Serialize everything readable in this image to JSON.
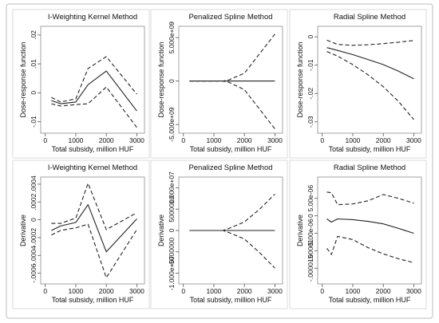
{
  "chart_data": [
    {
      "type": "line",
      "title": "I-Weighting Kernel Method",
      "xlabel": "Total subsidy, million HUF",
      "ylabel": "Dose-response function",
      "grid": false,
      "xlim": [
        -150,
        3250
      ],
      "ylim": [
        -0.014,
        0.023
      ],
      "xticks": [
        {
          "value": 0,
          "label": "0"
        },
        {
          "value": 1000,
          "label": "1000"
        },
        {
          "value": 2000,
          "label": "2000"
        },
        {
          "value": 3000,
          "label": "3000"
        }
      ],
      "yticks": [
        {
          "value": -0.01,
          "label": "-.01"
        },
        {
          "value": 0,
          "label": "0"
        },
        {
          "value": 0.01,
          "label": ".01"
        },
        {
          "value": 0.02,
          "label": ".02"
        }
      ],
      "series": [
        {
          "dashed": false,
          "x": [
            200,
            500,
            1000,
            1400,
            2000,
            3000
          ],
          "y": [
            -0.0027,
            -0.0038,
            -0.0032,
            0.0028,
            0.0075,
            -0.0063
          ]
        },
        {
          "dashed": true,
          "x": [
            200,
            500,
            1000,
            1400,
            2000,
            3000
          ],
          "y": [
            -0.0016,
            -0.0032,
            -0.0021,
            0.0084,
            0.0125,
            -0.0005
          ]
        },
        {
          "dashed": true,
          "x": [
            200,
            500,
            1000,
            1400,
            2000,
            3000
          ],
          "y": [
            -0.0038,
            -0.0046,
            -0.0041,
            -0.0038,
            0.002,
            -0.012
          ]
        }
      ]
    },
    {
      "type": "line",
      "title": "Penalized Spline Method",
      "xlabel": "Total subsidy, million HUF",
      "ylabel": "Dose-response function",
      "grid": false,
      "xlim": [
        -150,
        3250
      ],
      "ylim": [
        -6000000000,
        6300000000
      ],
      "xticks": [
        {
          "value": 0,
          "label": "0"
        },
        {
          "value": 1000,
          "label": "1000"
        },
        {
          "value": 2000,
          "label": "2000"
        },
        {
          "value": 3000,
          "label": "3000"
        }
      ],
      "yticks": [
        {
          "value": -5000000000,
          "label": "-5.000e+09"
        },
        {
          "value": 0,
          "label": "0"
        },
        {
          "value": 5000000000,
          "label": "5.000e+09"
        }
      ],
      "series": [
        {
          "dashed": false,
          "x": [
            200,
            500,
            1000,
            1300,
            1500,
            2000,
            2500,
            3000
          ],
          "y": [
            0,
            0,
            0,
            0,
            0,
            0,
            0,
            0
          ]
        },
        {
          "dashed": true,
          "x": [
            200,
            500,
            1000,
            1300,
            1500,
            2000,
            2500,
            3000
          ],
          "y": [
            0,
            0,
            0,
            0,
            150000000,
            900000000,
            3150000000,
            5400000000
          ]
        },
        {
          "dashed": true,
          "x": [
            200,
            500,
            1000,
            1300,
            1500,
            2000,
            2500,
            3000
          ],
          "y": [
            0,
            0,
            0,
            0,
            -150000000,
            -1000000000,
            -3250000000,
            -5500000000
          ]
        }
      ]
    },
    {
      "type": "line",
      "title": "Radial Spline Method",
      "xlabel": "Total subsidy, million HUF",
      "ylabel": "Dose-response function",
      "grid": false,
      "xlim": [
        -150,
        3250
      ],
      "ylim": [
        -0.034,
        0.0037
      ],
      "xticks": [
        {
          "value": 0,
          "label": "0"
        },
        {
          "value": 1000,
          "label": "1000"
        },
        {
          "value": 2000,
          "label": "2000"
        },
        {
          "value": 3000,
          "label": "3000"
        }
      ],
      "yticks": [
        {
          "value": -0.03,
          "label": "-.03"
        },
        {
          "value": -0.02,
          "label": "-.02"
        },
        {
          "value": -0.01,
          "label": "-.01"
        },
        {
          "value": 0,
          "label": "0"
        }
      ],
      "series": [
        {
          "dashed": false,
          "x": [
            150,
            500,
            1000,
            1500,
            2000,
            2500,
            3000
          ],
          "y": [
            -0.0038,
            -0.0048,
            -0.0063,
            -0.008,
            -0.0098,
            -0.0121,
            -0.0148
          ]
        },
        {
          "dashed": true,
          "x": [
            150,
            500,
            1000,
            1500,
            2000,
            2500,
            3000
          ],
          "y": [
            -0.0012,
            -0.0027,
            -0.003,
            -0.0028,
            -0.0024,
            -0.0019,
            -0.0013
          ]
        },
        {
          "dashed": true,
          "x": [
            150,
            500,
            1000,
            1500,
            2000,
            2500,
            3000
          ],
          "y": [
            -0.0052,
            -0.0068,
            -0.0098,
            -0.0134,
            -0.0176,
            -0.0228,
            -0.0292
          ]
        }
      ]
    },
    {
      "type": "line",
      "title": "I-Weighting Kernel Method",
      "xlabel": "Total subsidy, million HUF",
      "ylabel": "Derivative",
      "grid": false,
      "xlim": [
        -150,
        3250
      ],
      "ylim": [
        -0.00072,
        0.00048
      ],
      "xticks": [
        {
          "value": 0,
          "label": "0"
        },
        {
          "value": 1000,
          "label": "1000"
        },
        {
          "value": 2000,
          "label": "2000"
        },
        {
          "value": 3000,
          "label": "3000"
        }
      ],
      "yticks": [
        {
          "value": -0.0006,
          "label": "-.0006"
        },
        {
          "value": -0.0004,
          "label": "-.0004"
        },
        {
          "value": -0.0002,
          "label": "-.0002"
        },
        {
          "value": 0,
          "label": "0"
        },
        {
          "value": 0.0002,
          "label": ".0002"
        },
        {
          "value": 0.0004,
          "label": ".0004"
        }
      ],
      "series": [
        {
          "dashed": false,
          "x": [
            200,
            500,
            1000,
            1400,
            2000,
            3000
          ],
          "y": [
            -0.00012,
            -7e-05,
            -3e-05,
            0.00017,
            -0.00036,
            1e-05
          ]
        },
        {
          "dashed": true,
          "x": [
            200,
            500,
            1000,
            1400,
            2000,
            3000
          ],
          "y": [
            -4e-05,
            -4e-05,
            2e-05,
            0.00041,
            -0.00011,
            8e-05
          ]
        },
        {
          "dashed": true,
          "x": [
            200,
            500,
            1000,
            1400,
            2000,
            3000
          ],
          "y": [
            -0.00017,
            -0.00012,
            -9e-05,
            -5e-05,
            -0.00065,
            -0.00011
          ]
        }
      ]
    },
    {
      "type": "line",
      "title": "Penalized Spline Method",
      "xlabel": "Total subsidy, million HUF",
      "ylabel": "Derivative",
      "grid": false,
      "xlim": [
        -150,
        3250
      ],
      "ylim": [
        -12500000,
        12500000
      ],
      "xticks": [
        {
          "value": 0,
          "label": "0"
        },
        {
          "value": 1000,
          "label": "1000"
        },
        {
          "value": 2000,
          "label": "2000"
        },
        {
          "value": 3000,
          "label": "3000"
        }
      ],
      "yticks": [
        {
          "value": -10000000,
          "label": "-1.000e+07"
        },
        {
          "value": -5000000,
          "label": "-5000000"
        },
        {
          "value": 0,
          "label": "0"
        },
        {
          "value": 5000000,
          "label": "5000000"
        },
        {
          "value": 10000000,
          "label": "1.000e+07"
        }
      ],
      "series": [
        {
          "dashed": false,
          "x": [
            200,
            500,
            1000,
            1300,
            1500,
            2000,
            2500,
            3000
          ],
          "y": [
            0,
            0,
            0,
            0,
            0,
            0,
            0,
            0
          ]
        },
        {
          "dashed": true,
          "x": [
            200,
            500,
            1000,
            1300,
            1500,
            2000,
            2500,
            3000
          ],
          "y": [
            0,
            0,
            0,
            0,
            500000,
            2000000,
            5000000,
            8500000
          ]
        },
        {
          "dashed": true,
          "x": [
            200,
            500,
            1000,
            1300,
            1500,
            2000,
            2500,
            3000
          ],
          "y": [
            0,
            0,
            0,
            0,
            -500000,
            -2000000,
            -5200000,
            -8800000
          ]
        }
      ]
    },
    {
      "type": "line",
      "title": "Radial Spline Method",
      "xlabel": "Total subsidy, million HUF",
      "ylabel": "Derivative",
      "grid": false,
      "xlim": [
        -150,
        3250
      ],
      "ylim": [
        -1.95e-05,
        1.11e-05
      ],
      "xticks": [
        {
          "value": 0,
          "label": "0"
        },
        {
          "value": 1000,
          "label": "1000"
        },
        {
          "value": 2000,
          "label": "2000"
        },
        {
          "value": 3000,
          "label": "3000"
        }
      ],
      "yticks": [
        {
          "value": -1.5e-05,
          "label": "-.000015"
        },
        {
          "value": -1e-05,
          "label": "-.00001"
        },
        {
          "value": -5e-06,
          "label": "-5.00e-06"
        },
        {
          "value": 0,
          "label": "0"
        },
        {
          "value": 5e-06,
          "label": "5.00e-06"
        }
      ],
      "series": [
        {
          "dashed": false,
          "x": [
            150,
            300,
            500,
            1000,
            1500,
            2000,
            2500,
            3000
          ],
          "y": [
            -9e-07,
            -1.8e-06,
            -9e-07,
            -1.1e-06,
            -1.6e-06,
            -2.3e-06,
            -3.6e-06,
            -5e-06
          ]
        },
        {
          "dashed": true,
          "x": [
            150,
            300,
            500,
            1000,
            1500,
            2000,
            2500,
            3000
          ],
          "y": [
            6.8e-06,
            6.6e-06,
            3.2e-06,
            3.4e-06,
            4.3e-06,
            6.1e-06,
            5e-06,
            3.6e-06
          ]
        },
        {
          "dashed": true,
          "x": [
            150,
            300,
            500,
            1000,
            1500,
            2000,
            2500,
            3000
          ],
          "y": [
            -9.3e-06,
            -1.11e-05,
            -5.9e-06,
            -6.8e-06,
            -9.1e-06,
            -1.09e-05,
            -1.23e-05,
            -1.34e-05
          ]
        }
      ]
    }
  ]
}
